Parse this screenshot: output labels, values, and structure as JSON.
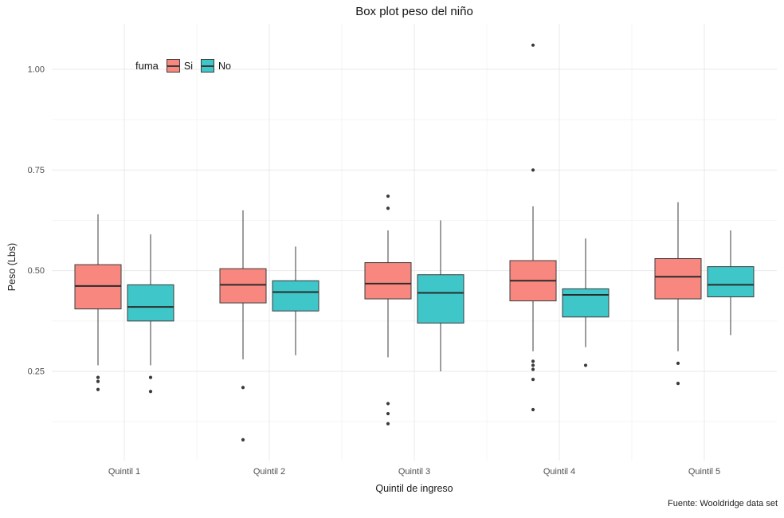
{
  "chart_data": {
    "type": "boxplot",
    "title": "Box plot peso del niño",
    "xlabel": "Quintil de ingreso",
    "ylabel": "Peso (Lbs)",
    "caption": "Fuente: Wooldridge data set",
    "legend_title": "fuma",
    "legend_position": "inside-top-left",
    "grid": true,
    "ylim": [
      0.03,
      1.11
    ],
    "yticks": [
      0.25,
      0.5,
      0.75,
      1.0
    ],
    "ytick_labels": [
      "0.25",
      "0.50",
      "0.75",
      "1.00"
    ],
    "categories": [
      "Quintil 1",
      "Quintil 2",
      "Quintil 3",
      "Quintil 4",
      "Quintil 5"
    ],
    "box_outline_color": "#3b3b3b",
    "series": [
      {
        "name": "Si",
        "color": "#F8877F",
        "boxes": [
          {
            "q1": 0.405,
            "median": 0.462,
            "q3": 0.515,
            "whisker_low": 0.265,
            "whisker_high": 0.64,
            "outliers": [
              0.235,
              0.225,
              0.205
            ]
          },
          {
            "q1": 0.42,
            "median": 0.465,
            "q3": 0.505,
            "whisker_low": 0.28,
            "whisker_high": 0.65,
            "outliers": [
              0.21,
              0.08
            ]
          },
          {
            "q1": 0.43,
            "median": 0.468,
            "q3": 0.52,
            "whisker_low": 0.285,
            "whisker_high": 0.6,
            "outliers": [
              0.685,
              0.655,
              0.17,
              0.145,
              0.12
            ]
          },
          {
            "q1": 0.425,
            "median": 0.475,
            "q3": 0.525,
            "whisker_low": 0.3,
            "whisker_high": 0.66,
            "outliers": [
              1.06,
              0.75,
              0.275,
              0.265,
              0.255,
              0.23,
              0.155
            ]
          },
          {
            "q1": 0.43,
            "median": 0.485,
            "q3": 0.53,
            "whisker_low": 0.3,
            "whisker_high": 0.67,
            "outliers": [
              0.27,
              0.22
            ]
          }
        ]
      },
      {
        "name": "No",
        "color": "#3EC6C9",
        "boxes": [
          {
            "q1": 0.375,
            "median": 0.41,
            "q3": 0.465,
            "whisker_low": 0.265,
            "whisker_high": 0.59,
            "outliers": [
              0.235,
              0.2
            ]
          },
          {
            "q1": 0.4,
            "median": 0.447,
            "q3": 0.475,
            "whisker_low": 0.29,
            "whisker_high": 0.56,
            "outliers": []
          },
          {
            "q1": 0.37,
            "median": 0.445,
            "q3": 0.49,
            "whisker_low": 0.25,
            "whisker_high": 0.625,
            "outliers": []
          },
          {
            "q1": 0.385,
            "median": 0.44,
            "q3": 0.455,
            "whisker_low": 0.31,
            "whisker_high": 0.58,
            "outliers": [
              0.265
            ]
          },
          {
            "q1": 0.435,
            "median": 0.465,
            "q3": 0.51,
            "whisker_low": 0.34,
            "whisker_high": 0.6,
            "outliers": []
          }
        ]
      }
    ]
  }
}
